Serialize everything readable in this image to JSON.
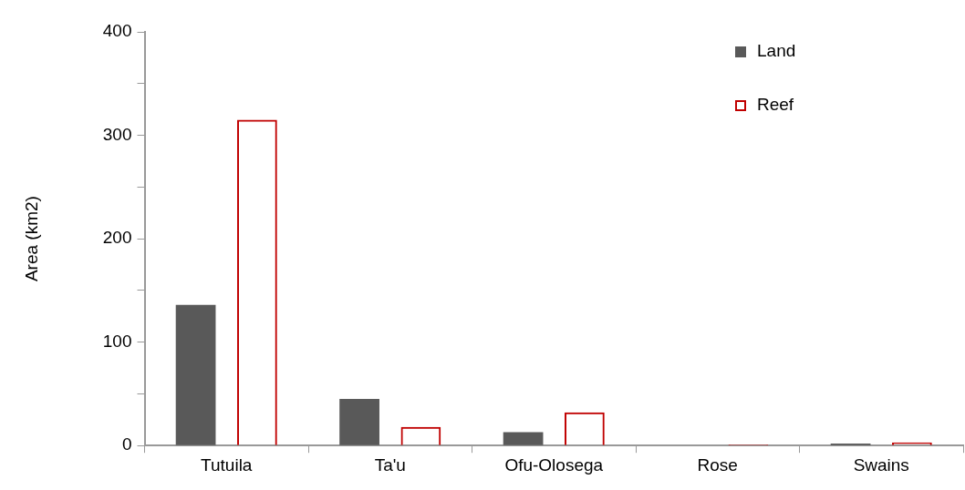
{
  "chart_data": {
    "type": "bar",
    "ylabel": "Area (km2)",
    "categories": [
      "Tutuila",
      "Ta'u",
      "Ofu-Olosega",
      "Rose",
      "Swains"
    ],
    "series": [
      {
        "name": "Land",
        "color": "#595959",
        "values": [
          136,
          45,
          13,
          null,
          2
        ]
      },
      {
        "name": "Reef",
        "color": "#c00000",
        "values": [
          315,
          18,
          32,
          1,
          3
        ]
      }
    ],
    "ylim": [
      0,
      400
    ],
    "yticks": [
      0,
      {
        "value": 50,
        "label": null
      },
      100,
      {
        "value": 150,
        "label": null
      },
      200,
      {
        "value": 250,
        "label": null
      },
      300,
      {
        "value": 350,
        "label": null
      },
      400
    ],
    "grid": false,
    "legend": "top right"
  }
}
